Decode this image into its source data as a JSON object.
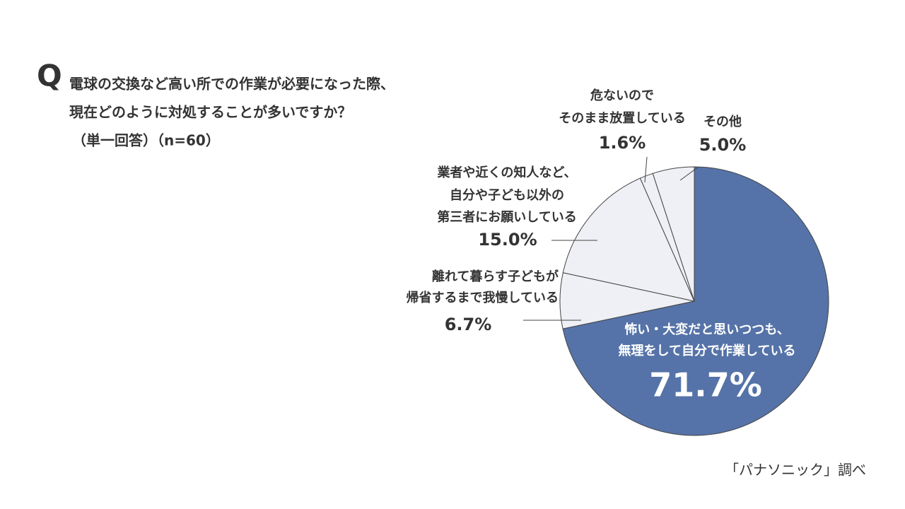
{
  "chart_data": {
    "type": "pie",
    "title_marker": "Q",
    "title": [
      "電球の交換など高い所での作業が必要になった際、",
      "現在どのように対処することが多いですか？"
    ],
    "subtitle": "（単一回答）（n=60）",
    "categories": [
      [
        "怖い・大変だと思いつつも、",
        "無理をして自分で作業している"
      ],
      [
        "離れて暮らす子どもが",
        "帰省するまで我慢している"
      ],
      [
        "業者や近くの知人など、",
        "自分や子ども以外の",
        "第三者にお願いしている"
      ],
      [
        "危ないので",
        "そのまま放置している"
      ],
      [
        "その他"
      ]
    ],
    "values": [
      71.7,
      6.7,
      15.0,
      1.6,
      5.0
    ],
    "value_labels": [
      "71.7%",
      "6.7%",
      "15.0%",
      "1.6%",
      "5.0%"
    ],
    "colors": [
      "#5573a8",
      "#eef0f5",
      "#eef0f5",
      "#eef0f5",
      "#eef0f5"
    ],
    "source": "「パナソニック」調べ"
  }
}
